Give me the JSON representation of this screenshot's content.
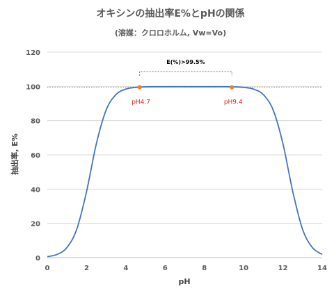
{
  "chart_data": {
    "type": "line",
    "title": "オキシンの抽出率E%とpHの関係",
    "subtitle": "(溶媒：クロロホルム, Vw=Vo)",
    "xlabel": "pH",
    "ylabel": "抽出率, E%",
    "xlim": [
      0,
      14
    ],
    "ylim": [
      0,
      120
    ],
    "xticks": [
      "0",
      "2",
      "4",
      "6",
      "8",
      "10",
      "12",
      "14"
    ],
    "yticks": [
      "0",
      "20",
      "40",
      "60",
      "80",
      "100",
      "120"
    ],
    "grid": true,
    "series": [
      {
        "color": "#4472c4",
        "x": [
          0,
          0.5,
          1,
          1.5,
          2,
          2.5,
          3,
          3.5,
          4,
          4.5,
          5,
          5.5,
          6,
          6.5,
          7,
          7.5,
          8,
          8.5,
          9,
          9.5,
          10,
          10.5,
          11,
          11.5,
          12,
          12.5,
          13,
          13.5,
          14
        ],
        "y": [
          0.6,
          1.9,
          5.9,
          16.6,
          38.7,
          66.6,
          86.3,
          95.2,
          98.4,
          99.4,
          99.7,
          99.8,
          99.8,
          99.8,
          99.8,
          99.8,
          99.8,
          99.8,
          99.8,
          99.7,
          99.4,
          98.4,
          95.2,
          86.3,
          66.6,
          38.7,
          16.6,
          5.9,
          1.9
        ]
      }
    ],
    "reference_line": {
      "y": 99.5,
      "color": "#ed7d31"
    },
    "points": [
      {
        "x": 4.7,
        "y": 99.5,
        "label": "pH4.7"
      },
      {
        "x": 9.4,
        "y": 99.5,
        "label": "pH9.4"
      }
    ],
    "bracket_label": "E(%)>99.5%"
  }
}
